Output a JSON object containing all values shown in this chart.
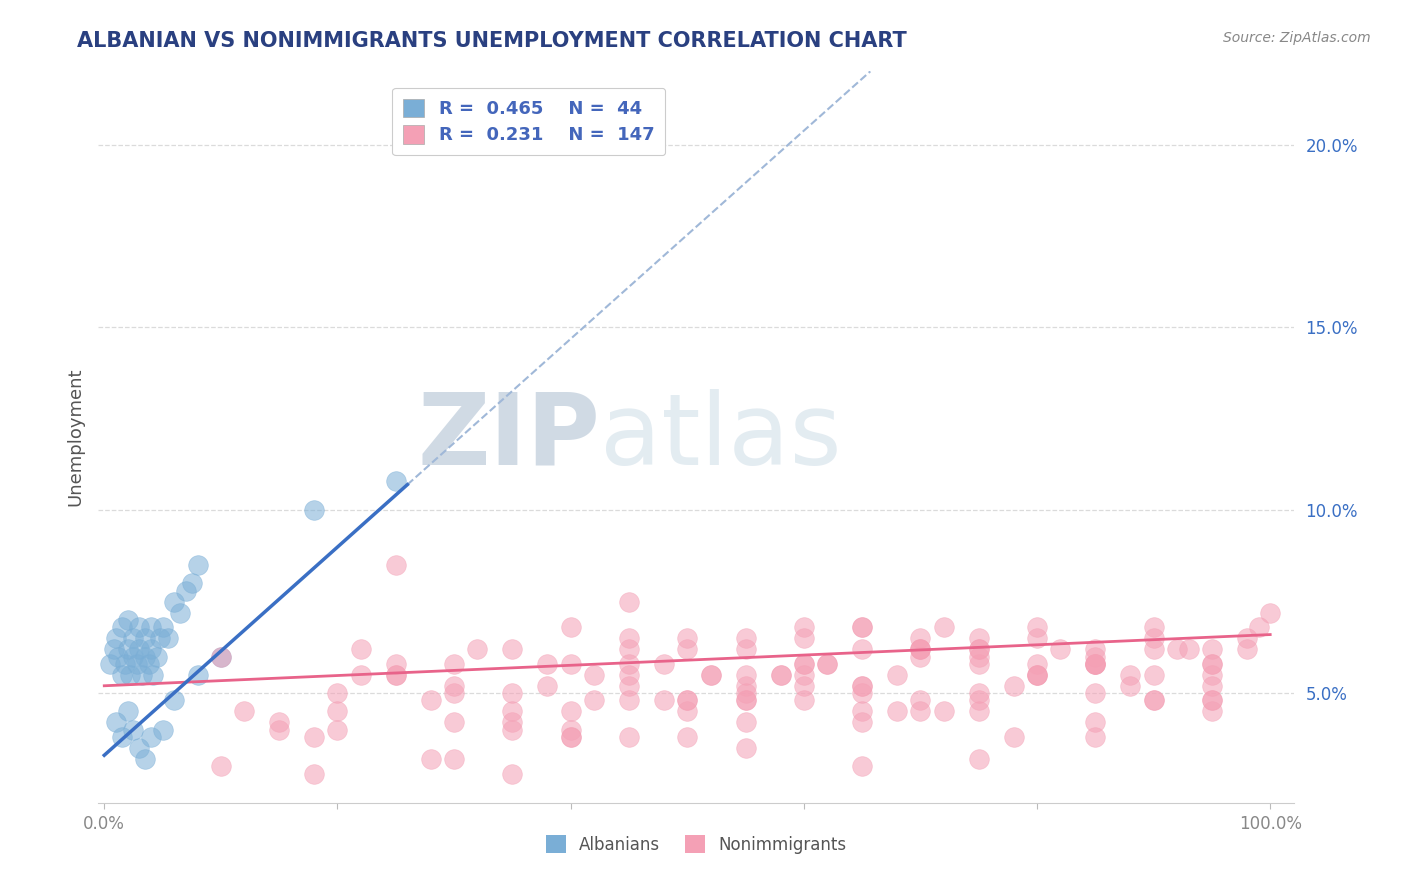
{
  "title": "ALBANIAN VS NONIMMIGRANTS UNEMPLOYMENT CORRELATION CHART",
  "source": "Source: ZipAtlas.com",
  "ylabel": "Unemployment",
  "xlim": [
    -0.005,
    1.02
  ],
  "ylim": [
    0.02,
    0.22
  ],
  "xtick_labels": [
    "0.0%",
    "",
    "",
    "",
    "",
    "100.0%"
  ],
  "xtick_vals": [
    0.0,
    0.2,
    0.4,
    0.6,
    0.8,
    1.0
  ],
  "ytick_vals": [
    0.05,
    0.1,
    0.15,
    0.2
  ],
  "ytick_labels": [
    "5.0%",
    "10.0%",
    "15.0%",
    "20.0%"
  ],
  "albanian_R": 0.465,
  "albanian_N": 44,
  "nonimmigrant_R": 0.231,
  "nonimmigrant_N": 147,
  "albanian_color": "#7aaed6",
  "nonimmigrant_color": "#f4a0b5",
  "albanian_line_color": "#3a6fc4",
  "nonimmigrant_line_color": "#e8638a",
  "dashed_line_color": "#a0b8d8",
  "watermark_zip": "ZIP",
  "watermark_atlas": "atlas",
  "watermark_color": "#d0dce8",
  "grid_color": "#d8d8d8",
  "grid_style": "--",
  "background_color": "#ffffff",
  "legend_text_color": "#4466bb",
  "title_color": "#2a4080",
  "source_color": "#888888",
  "ylabel_color": "#555555",
  "tick_color": "#888888",
  "alb_line_start_x": 0.0,
  "alb_line_start_y": 0.033,
  "alb_line_end_x": 0.26,
  "alb_line_end_y": 0.107,
  "non_line_start_x": 0.0,
  "non_line_start_y": 0.052,
  "non_line_end_x": 1.0,
  "non_line_end_y": 0.066,
  "albanian_scatter_x": [
    0.005,
    0.008,
    0.01,
    0.012,
    0.015,
    0.015,
    0.018,
    0.02,
    0.02,
    0.022,
    0.025,
    0.025,
    0.028,
    0.03,
    0.03,
    0.032,
    0.035,
    0.035,
    0.038,
    0.04,
    0.04,
    0.042,
    0.045,
    0.048,
    0.05,
    0.055,
    0.06,
    0.065,
    0.07,
    0.075,
    0.08,
    0.01,
    0.015,
    0.02,
    0.025,
    0.03,
    0.035,
    0.04,
    0.05,
    0.06,
    0.08,
    0.1,
    0.18,
    0.25
  ],
  "albanian_scatter_y": [
    0.058,
    0.062,
    0.065,
    0.06,
    0.055,
    0.068,
    0.058,
    0.062,
    0.07,
    0.055,
    0.06,
    0.065,
    0.058,
    0.062,
    0.068,
    0.055,
    0.06,
    0.065,
    0.058,
    0.062,
    0.068,
    0.055,
    0.06,
    0.065,
    0.068,
    0.065,
    0.075,
    0.072,
    0.078,
    0.08,
    0.085,
    0.042,
    0.038,
    0.045,
    0.04,
    0.035,
    0.032,
    0.038,
    0.04,
    0.048,
    0.055,
    0.06,
    0.1,
    0.108
  ],
  "nonimmigrant_scatter_x": [
    0.1,
    0.12,
    0.15,
    0.18,
    0.2,
    0.22,
    0.25,
    0.25,
    0.28,
    0.3,
    0.32,
    0.35,
    0.35,
    0.38,
    0.4,
    0.4,
    0.42,
    0.45,
    0.45,
    0.48,
    0.5,
    0.5,
    0.52,
    0.55,
    0.55,
    0.58,
    0.6,
    0.6,
    0.62,
    0.65,
    0.65,
    0.68,
    0.7,
    0.7,
    0.72,
    0.75,
    0.75,
    0.78,
    0.8,
    0.8,
    0.82,
    0.85,
    0.85,
    0.88,
    0.9,
    0.9,
    0.92,
    0.95,
    0.95,
    0.98,
    0.2,
    0.25,
    0.3,
    0.35,
    0.4,
    0.45,
    0.5,
    0.55,
    0.6,
    0.65,
    0.7,
    0.75,
    0.8,
    0.85,
    0.9,
    0.95,
    0.3,
    0.35,
    0.4,
    0.45,
    0.5,
    0.55,
    0.6,
    0.65,
    0.7,
    0.75,
    0.8,
    0.85,
    0.9,
    0.95,
    0.2,
    0.3,
    0.4,
    0.5,
    0.6,
    0.7,
    0.8,
    0.9,
    0.25,
    0.35,
    0.45,
    0.55,
    0.65,
    0.75,
    0.85,
    0.95,
    0.4,
    0.5,
    0.6,
    0.7,
    0.45,
    0.55,
    0.65,
    0.75,
    0.85,
    0.3,
    0.45,
    0.55,
    0.65,
    0.75,
    0.85,
    0.95,
    0.35,
    0.45,
    0.55,
    0.65,
    0.75,
    0.85,
    0.95,
    0.55,
    0.65,
    0.75,
    0.85,
    0.95,
    0.6,
    0.7,
    0.8,
    0.9,
    0.98,
    0.99,
    1.0,
    0.15,
    0.22,
    0.38,
    0.48,
    0.58,
    0.68,
    0.78,
    0.88,
    0.93,
    0.1,
    0.18,
    0.28,
    0.42,
    0.52,
    0.62,
    0.72
  ],
  "nonimmigrant_scatter_y": [
    0.06,
    0.045,
    0.04,
    0.038,
    0.05,
    0.062,
    0.055,
    0.085,
    0.048,
    0.058,
    0.062,
    0.05,
    0.042,
    0.052,
    0.045,
    0.068,
    0.055,
    0.062,
    0.075,
    0.058,
    0.062,
    0.045,
    0.055,
    0.065,
    0.048,
    0.055,
    0.068,
    0.052,
    0.058,
    0.045,
    0.062,
    0.055,
    0.062,
    0.048,
    0.068,
    0.058,
    0.045,
    0.052,
    0.065,
    0.055,
    0.062,
    0.058,
    0.042,
    0.055,
    0.068,
    0.048,
    0.062,
    0.058,
    0.045,
    0.065,
    0.04,
    0.055,
    0.032,
    0.028,
    0.058,
    0.048,
    0.038,
    0.062,
    0.058,
    0.052,
    0.062,
    0.048,
    0.068,
    0.058,
    0.065,
    0.062,
    0.05,
    0.045,
    0.04,
    0.052,
    0.048,
    0.042,
    0.058,
    0.052,
    0.065,
    0.06,
    0.055,
    0.05,
    0.062,
    0.048,
    0.045,
    0.052,
    0.038,
    0.065,
    0.048,
    0.062,
    0.058,
    0.055,
    0.058,
    0.04,
    0.065,
    0.052,
    0.068,
    0.05,
    0.062,
    0.058,
    0.038,
    0.048,
    0.055,
    0.045,
    0.055,
    0.05,
    0.068,
    0.062,
    0.058,
    0.042,
    0.038,
    0.035,
    0.03,
    0.032,
    0.038,
    0.048,
    0.062,
    0.058,
    0.055,
    0.05,
    0.065,
    0.06,
    0.055,
    0.048,
    0.042,
    0.062,
    0.058,
    0.052,
    0.065,
    0.06,
    0.055,
    0.048,
    0.062,
    0.068,
    0.072,
    0.042,
    0.055,
    0.058,
    0.048,
    0.055,
    0.045,
    0.038,
    0.052,
    0.062,
    0.03,
    0.028,
    0.032,
    0.048,
    0.055,
    0.058,
    0.045
  ]
}
